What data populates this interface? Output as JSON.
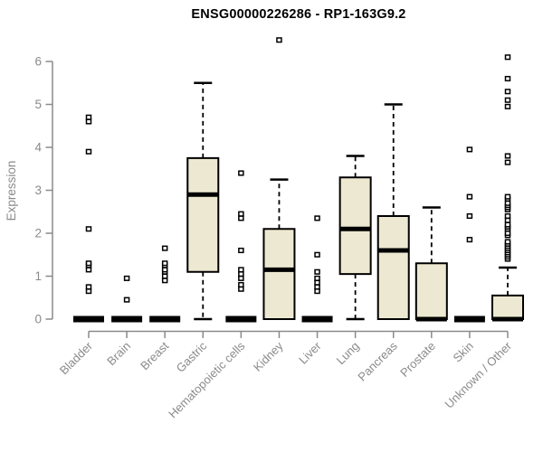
{
  "chart_data": {
    "type": "boxplot",
    "title": "ENSG00000226286 - RP1-163G9.2",
    "ylabel": "Expression",
    "xlabel": "",
    "ylim": [
      0,
      6
    ],
    "yticks": [
      0,
      1,
      2,
      3,
      4,
      5,
      6
    ],
    "grid": false,
    "legend": "none",
    "axis_color": "#8a8a8a",
    "box_fill": "#ede8d1",
    "box_stroke": "#000000",
    "categories": [
      "Bladder",
      "Brain",
      "Breast",
      "Gastric",
      "Hematopoietic cells",
      "Kidney",
      "Liver",
      "Lung",
      "Pancreas",
      "Prostate",
      "Skin",
      "Unknown / Other"
    ],
    "series": [
      {
        "category": "Bladder",
        "q1": 0,
        "median": 0,
        "q3": 0,
        "whisker_low": 0,
        "whisker_high": 0,
        "outliers": [
          0.65,
          0.75,
          1.15,
          1.25,
          1.3,
          2.1,
          3.9,
          4.6,
          4.7
        ]
      },
      {
        "category": "Brain",
        "q1": 0,
        "median": 0,
        "q3": 0,
        "whisker_low": 0,
        "whisker_high": 0,
        "outliers": [
          0.45,
          0.95
        ]
      },
      {
        "category": "Breast",
        "q1": 0,
        "median": 0,
        "q3": 0,
        "whisker_low": 0,
        "whisker_high": 0,
        "outliers": [
          0.9,
          1.0,
          1.1,
          1.15,
          1.25,
          1.3,
          1.65
        ]
      },
      {
        "category": "Gastric",
        "q1": 1.1,
        "median": 2.9,
        "q3": 3.75,
        "whisker_low": 0,
        "whisker_high": 5.5,
        "outliers": []
      },
      {
        "category": "Hematopoietic cells",
        "q1": 0,
        "median": 0,
        "q3": 0,
        "whisker_low": 0,
        "whisker_high": 0,
        "outliers": [
          0.7,
          0.8,
          0.95,
          1.05,
          1.15,
          1.6,
          2.35,
          2.45,
          3.4
        ]
      },
      {
        "category": "Kidney",
        "q1": 0,
        "median": 1.15,
        "q3": 2.1,
        "whisker_low": 0,
        "whisker_high": 3.25,
        "outliers": [
          6.5
        ]
      },
      {
        "category": "Liver",
        "q1": 0,
        "median": 0,
        "q3": 0,
        "whisker_low": 0,
        "whisker_high": 0,
        "outliers": [
          0.65,
          0.75,
          0.85,
          0.95,
          1.1,
          1.5,
          2.35
        ]
      },
      {
        "category": "Lung",
        "q1": 1.05,
        "median": 2.1,
        "q3": 3.3,
        "whisker_low": 0,
        "whisker_high": 3.8,
        "outliers": []
      },
      {
        "category": "Pancreas",
        "q1": 0,
        "median": 1.6,
        "q3": 2.4,
        "whisker_low": 0,
        "whisker_high": 5.0,
        "outliers": []
      },
      {
        "category": "Prostate",
        "q1": 0,
        "median": 0,
        "q3": 1.3,
        "whisker_low": 0,
        "whisker_high": 2.6,
        "outliers": []
      },
      {
        "category": "Skin",
        "q1": 0,
        "median": 0,
        "q3": 0,
        "whisker_low": 0,
        "whisker_high": 0,
        "outliers": [
          1.85,
          2.4,
          2.85,
          3.95
        ]
      },
      {
        "category": "Unknown / Other",
        "q1": 0,
        "median": 0,
        "q3": 0.55,
        "whisker_low": 0,
        "whisker_high": 1.2,
        "outliers": [
          1.4,
          1.45,
          1.5,
          1.55,
          1.6,
          1.65,
          1.7,
          1.75,
          1.8,
          1.95,
          2.0,
          2.1,
          2.15,
          2.2,
          2.3,
          2.4,
          2.55,
          2.6,
          2.65,
          2.7,
          2.8,
          2.85,
          3.65,
          3.8,
          4.95,
          5.1,
          5.3,
          5.6,
          6.1
        ]
      }
    ]
  }
}
